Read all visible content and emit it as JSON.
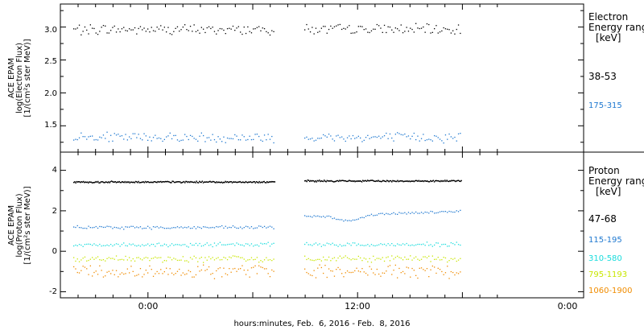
{
  "chart_data": [
    {
      "type": "scatter",
      "ylabel_lines": [
        "ACE EPAM",
        "log(Electron Flux)",
        "[1/(cm²s ster MeV)]"
      ],
      "ylim": [
        1.1,
        3.35
      ],
      "yticks": [
        "1.5",
        "2.0",
        "2.5",
        "3.0"
      ],
      "legend_title": [
        "Electron",
        "Energy ranges",
        "[keV]"
      ],
      "series": [
        {
          "name": "38-53",
          "color": "#000000",
          "mean": 2.97,
          "jitter": 0.06
        },
        {
          "name": "175-315",
          "color": "#1e78d0",
          "mean": 1.33,
          "jitter": 0.06
        }
      ]
    },
    {
      "type": "scatter",
      "ylabel_lines": [
        "ACE EPAM",
        "log(Proton Flux)",
        "[1/(cm²s ster MeV)]"
      ],
      "ylim": [
        -2.3,
        4.9
      ],
      "yticks": [
        "-2",
        "0",
        "2",
        "4"
      ],
      "legend_title": [
        "Proton",
        "Energy ranges",
        "[keV]"
      ],
      "series": [
        {
          "name": "47-68",
          "color": "#000000",
          "mean": 3.45,
          "jitter": 0.03
        },
        {
          "name": "115-195",
          "color": "#1e78d0",
          "mean": 1.2,
          "jitter": 0.06
        },
        {
          "name": "310-580",
          "color": "#18dcdc",
          "mean": 0.35,
          "jitter": 0.08
        },
        {
          "name": "795-1193",
          "color": "#c8e600",
          "mean": -0.35,
          "jitter": 0.12
        },
        {
          "name": "1060-1900",
          "color": "#f08c00",
          "mean": -0.95,
          "jitter": 0.25
        }
      ]
    }
  ],
  "x_axis": {
    "ticks": [
      "0:00",
      "12:00",
      "0:00"
    ],
    "label": "hours:minutes, Feb.  6, 2016 - Feb.  8, 2016"
  }
}
